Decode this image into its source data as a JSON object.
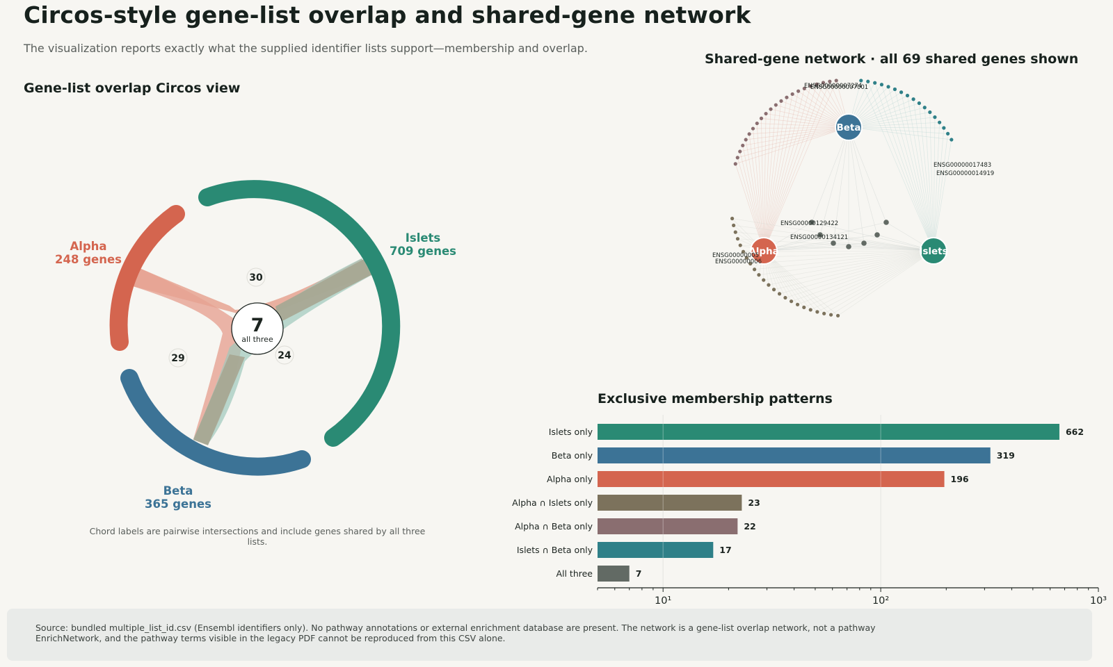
{
  "header": {
    "title": "Circos-style gene-list overlap and shared-gene network",
    "subtitle": "The visualization reports exactly what the supplied identifier lists support—membership and overlap."
  },
  "circos": {
    "title": "Gene-list overlap Circos view",
    "note": "Chord labels are pairwise intersections and include genes shared by all three lists.",
    "lists": [
      {
        "name": "Alpha",
        "count_label": "248 genes",
        "count": 248,
        "color": "#d4654f"
      },
      {
        "name": "Islets",
        "count_label": "709 genes",
        "count": 709,
        "color": "#2a8a74"
      },
      {
        "name": "Beta",
        "count_label": "365 genes",
        "count": 365,
        "color": "#3c7396"
      }
    ],
    "pairwise": [
      {
        "pair": "Alpha-Islets",
        "value": "30"
      },
      {
        "pair": "Alpha-Beta",
        "value": "29"
      },
      {
        "pair": "Islets-Beta",
        "value": "24"
      }
    ],
    "center": {
      "value": "7",
      "label": "all three"
    }
  },
  "network": {
    "title": "Shared-gene network · all 69 shared genes shown",
    "hubs": {
      "beta": "Beta",
      "alpha": "Alpha",
      "islets": "Islets"
    },
    "gene_labels": {
      "top_a": "ENSG00000007274",
      "top_b": "ENSG00000007001",
      "right_a": "ENSG00000017483",
      "right_b": "ENSG00000014919",
      "mid_a": "ENSG00000129422",
      "mid_b": "ENSG00000134121",
      "left_a": "ENSG00000005",
      "left_b": "ENSG00000006"
    },
    "colors": {
      "alpha_beta": "#8a6e70",
      "beta_islets": "#2f8088",
      "alpha_islets": "#7c725c",
      "all_three": "#626a64"
    }
  },
  "chart_data": {
    "type": "bar",
    "title": "Exclusive membership patterns",
    "orientation": "horizontal",
    "xscale": "log",
    "xlim": [
      5,
      1000
    ],
    "xticks": [
      "10¹",
      "10²",
      "10³"
    ],
    "categories": [
      "Islets only",
      "Beta only",
      "Alpha only",
      "Alpha ∩ Islets only",
      "Alpha ∩ Beta only",
      "Islets ∩ Beta only",
      "All three"
    ],
    "values": [
      662,
      319,
      196,
      23,
      22,
      17,
      7
    ],
    "colors": [
      "#2a8a74",
      "#3c7396",
      "#d4654f",
      "#7c725c",
      "#8a6e70",
      "#2f8088",
      "#626a64"
    ],
    "grid": true
  },
  "footer": {
    "source": "Source: bundled multiple_list_id.csv (Ensembl identifiers only). No pathway annotations or external enrichment database are present. The network is a gene-list overlap network, not a pathway EnrichNetwork, and the pathway terms visible in the legacy PDF cannot be reproduced from this CSV alone."
  }
}
